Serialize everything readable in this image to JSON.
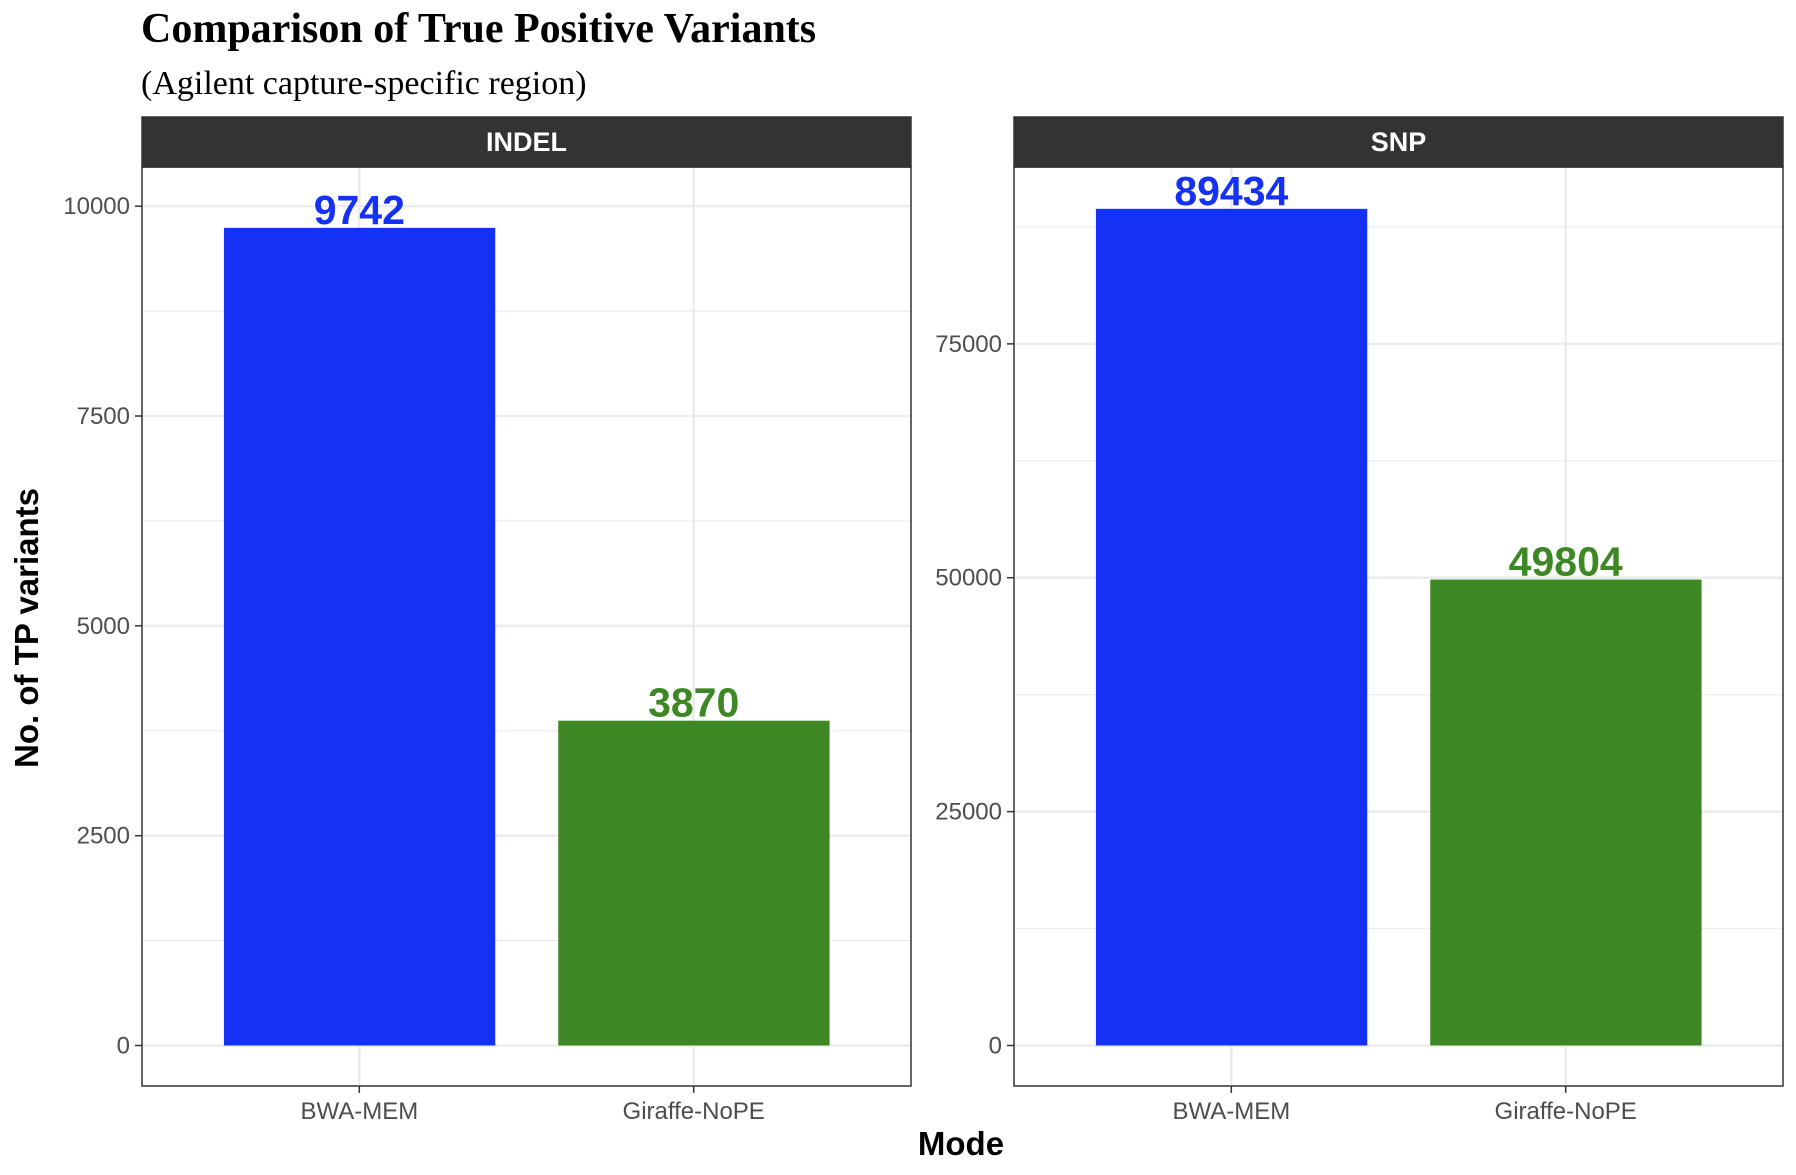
{
  "title": "Comparison of True Positive Variants",
  "subtitle": "(Agilent capture-specific region)",
  "xlabel": "Mode",
  "ylabel": "No. of TP variants",
  "colors": {
    "BWA-MEM": "#1531f5",
    "Giraffe-NoPE": "#3d8825",
    "strip_bg": "#333333",
    "grid": "#ebebeb",
    "panel_border": "#333333"
  },
  "chart_data": [
    {
      "type": "bar",
      "panel": "INDEL",
      "categories": [
        "BWA-MEM",
        "Giraffe-NoPE"
      ],
      "values": [
        9742,
        3870
      ],
      "ylim": [
        0,
        10467
      ],
      "yticks": [
        0,
        2500,
        5000,
        7500,
        10000
      ],
      "grid": true
    },
    {
      "type": "bar",
      "panel": "SNP",
      "categories": [
        "BWA-MEM",
        "Giraffe-NoPE"
      ],
      "values": [
        89434,
        49804
      ],
      "ylim": [
        0,
        93906
      ],
      "yticks": [
        0,
        25000,
        50000,
        75000
      ],
      "grid": true
    }
  ]
}
